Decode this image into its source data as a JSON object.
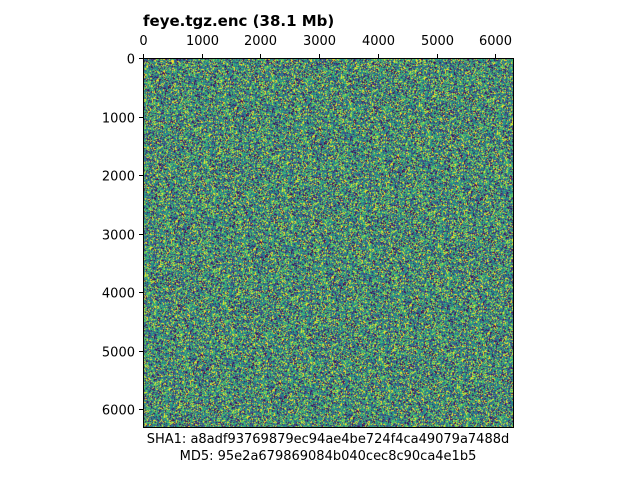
{
  "chart_data": {
    "type": "heatmap",
    "title": "feye.tgz.enc (38.1 Mb)",
    "xlabel": "",
    "ylabel": "",
    "xlim": [
      0,
      6320
    ],
    "ylim": [
      6320,
      0
    ],
    "x_ticks": [
      0,
      1000,
      2000,
      3000,
      4000,
      5000,
      6000
    ],
    "y_ticks": [
      0,
      1000,
      2000,
      3000,
      4000,
      5000,
      6000
    ],
    "x_axis_position": "top",
    "grid": false,
    "legend": "none",
    "colormap": [
      "#440154",
      "#3b528b",
      "#21918c",
      "#5ec962",
      "#fde725"
    ],
    "pattern": "uniform random noise"
  },
  "footer": {
    "sha1": "SHA1: a8adf93769879ec94ae4be724f4ca49079a7488d",
    "md5": "MD5: 95e2a679869084b040cec8c90ca4e1b5"
  }
}
